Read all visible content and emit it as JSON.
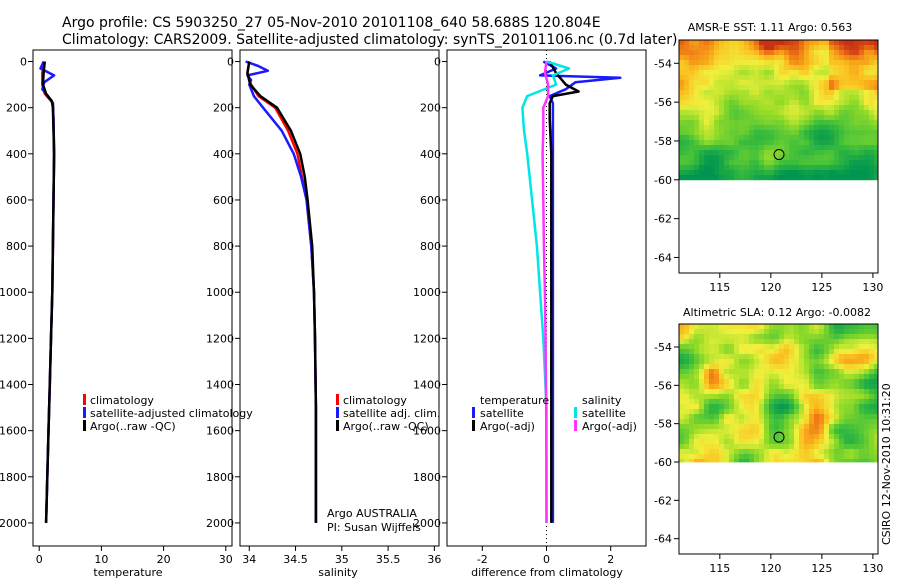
{
  "figure": {
    "title_line1": "Argo profile: CS 5903250_27 05-Nov-2010 20101108_640 58.688S 120.804E",
    "title_line2": "Climatology: CARS2009. Satellite-adjusted climatology: synTS_20101106.nc (0.7d later)",
    "credit": "CSIRO 12-Nov-2010 10:31:20"
  },
  "colors": {
    "climatology": "#ff0000",
    "satellite": "#1a1aff",
    "argo": "#000000",
    "sal_satellite": "#00e5e5",
    "sal_argo": "#ff33ff"
  },
  "panels": {
    "temperature": {
      "xlabel": "temperature",
      "legend": [
        "climatology",
        "satellite-adjusted climatology",
        "Argo(..raw -QC)"
      ]
    },
    "salinity": {
      "xlabel": "salinity",
      "legend": [
        "climatology",
        "satellite adj. clim.",
        "Argo(..raw -QC)"
      ],
      "note_line1": "Argo AUSTRALIA",
      "note_line2": "PI: Susan Wijffels"
    },
    "difference": {
      "xlabel": "difference from climatology",
      "legend_temp_title": "temperature",
      "legend_sal_title": "salinity",
      "legend_temp": [
        "satellite",
        "Argo(-adj)"
      ],
      "legend_sal": [
        "satellite",
        "Argo(-adj)"
      ]
    },
    "sst_map": {
      "title": "AMSR-E SST: 1.11  Argo: 0.563"
    },
    "sla_map": {
      "title": "Altimetric SLA: 0.12  Argo: -0.0082"
    }
  },
  "chart_data": [
    {
      "type": "line",
      "name": "temperature-profile",
      "xlabel": "temperature",
      "ylabel": "",
      "xlim": [
        -1,
        31
      ],
      "ylim": [
        2100,
        -50
      ],
      "xticks": [
        0,
        10,
        20,
        30
      ],
      "yticks": [
        0,
        200,
        400,
        600,
        800,
        1000,
        1200,
        1400,
        1600,
        1800,
        2000
      ],
      "series": [
        {
          "name": "climatology",
          "color": "climatology",
          "depth": [
            0,
            50,
            100,
            140,
            180,
            250,
            400,
            600,
            800,
            1000,
            1200,
            1400,
            1600,
            1800,
            2000
          ],
          "values": [
            0.8,
            0.5,
            0.5,
            0.9,
            2.2,
            2.3,
            2.4,
            2.3,
            2.2,
            2.1,
            1.9,
            1.7,
            1.5,
            1.3,
            1.1
          ]
        },
        {
          "name": "satellite-adjusted climatology",
          "color": "satellite",
          "depth": [
            0,
            30,
            60,
            90,
            120,
            150,
            180,
            250,
            400,
            600,
            800,
            1000,
            1200,
            1400,
            1600,
            1800,
            2000
          ],
          "values": [
            0.7,
            0.2,
            2.4,
            0.8,
            0.5,
            1.4,
            2.2,
            2.3,
            2.4,
            2.3,
            2.2,
            2.1,
            1.9,
            1.7,
            1.5,
            1.3,
            1.1
          ]
        },
        {
          "name": "Argo(..raw -QC)",
          "color": "argo",
          "depth": [
            0,
            50,
            100,
            140,
            170,
            200,
            300,
            400,
            600,
            800,
            1000,
            1200,
            1400,
            1600,
            1800,
            2000
          ],
          "values": [
            0.9,
            0.7,
            0.6,
            1.1,
            2.0,
            2.2,
            2.3,
            2.4,
            2.3,
            2.2,
            2.1,
            1.9,
            1.7,
            1.5,
            1.3,
            1.1
          ]
        }
      ]
    },
    {
      "type": "line",
      "name": "salinity-profile",
      "xlabel": "salinity",
      "ylabel": "",
      "xlim": [
        33.9,
        36.05
      ],
      "ylim": [
        2100,
        -50
      ],
      "xticks": [
        34,
        34.5,
        35,
        35.5,
        36
      ],
      "yticks": [
        0,
        200,
        400,
        600,
        800,
        1000,
        1200,
        1400,
        1600,
        1800,
        2000
      ],
      "series": [
        {
          "name": "climatology",
          "color": "climatology",
          "depth": [
            0,
            50,
            100,
            150,
            200,
            300,
            400,
            500,
            600,
            800,
            1000,
            1200,
            1500,
            2000
          ],
          "values": [
            34.0,
            33.98,
            34.02,
            34.1,
            34.28,
            34.42,
            34.52,
            34.57,
            34.62,
            34.67,
            34.7,
            34.71,
            34.72,
            34.72
          ]
        },
        {
          "name": "satellite adj. clim.",
          "color": "satellite",
          "depth": [
            0,
            20,
            40,
            60,
            80,
            100,
            150,
            200,
            300,
            400,
            500,
            600,
            800,
            1000,
            1200,
            1500,
            2000
          ],
          "values": [
            33.96,
            34.1,
            34.2,
            33.98,
            34.02,
            34.0,
            34.05,
            34.15,
            34.35,
            34.48,
            34.56,
            34.62,
            34.67,
            34.7,
            34.71,
            34.72,
            34.72
          ]
        },
        {
          "name": "Argo(..raw -QC)",
          "color": "argo",
          "depth": [
            0,
            50,
            100,
            150,
            200,
            300,
            400,
            500,
            600,
            800,
            1000,
            1200,
            1500,
            2000
          ],
          "values": [
            34.0,
            33.98,
            34.01,
            34.12,
            34.3,
            34.45,
            34.55,
            34.6,
            34.63,
            34.68,
            34.7,
            34.71,
            34.72,
            34.72
          ]
        }
      ]
    },
    {
      "type": "line",
      "name": "difference-profile",
      "xlabel": "difference from climatology",
      "ylabel": "",
      "xlim": [
        -3.1,
        3.1
      ],
      "ylim": [
        2100,
        -50
      ],
      "xticks": [
        -2,
        0,
        2
      ],
      "yticks": [
        0,
        200,
        400,
        600,
        800,
        1000,
        1200,
        1400,
        1600,
        1800,
        2000
      ],
      "series": [
        {
          "name": "temperature satellite",
          "color": "satellite",
          "depth": [
            0,
            30,
            60,
            70,
            90,
            120,
            150,
            180,
            250,
            400,
            800,
            1200,
            2000
          ],
          "values": [
            -0.1,
            0.3,
            -0.2,
            2.3,
            0.9,
            0.6,
            0.1,
            0.2,
            0.2,
            0.2,
            0.2,
            0.2,
            0.2
          ]
        },
        {
          "name": "temperature Argo(-adj)",
          "color": "argo",
          "depth": [
            0,
            50,
            100,
            130,
            150,
            180,
            250,
            400,
            800,
            1200,
            2000
          ],
          "values": [
            0.1,
            0.3,
            0.6,
            1.0,
            0.2,
            0.1,
            0.1,
            0.15,
            0.15,
            0.15,
            0.15
          ]
        },
        {
          "name": "salinity satellite",
          "color": "sal_satellite",
          "depth": [
            0,
            30,
            60,
            100,
            150,
            200,
            300,
            400,
            600,
            800,
            1000,
            1200,
            1500,
            2000
          ],
          "values": [
            0.0,
            0.7,
            0.2,
            0.3,
            -0.6,
            -0.75,
            -0.7,
            -0.6,
            -0.45,
            -0.3,
            -0.2,
            -0.1,
            0.0,
            0.0
          ]
        },
        {
          "name": "salinity Argo(-adj)",
          "color": "sal_argo",
          "depth": [
            0,
            50,
            100,
            150,
            200,
            300,
            400,
            600,
            800,
            1000,
            1200,
            1500,
            2000
          ],
          "values": [
            0.0,
            -0.05,
            0.05,
            0.05,
            -0.1,
            -0.1,
            -0.12,
            -0.1,
            -0.08,
            -0.05,
            -0.03,
            -0.01,
            0.0
          ]
        }
      ]
    },
    {
      "type": "heatmap",
      "name": "sst-map",
      "title": "AMSR-E SST: 1.11  Argo: 0.563",
      "xlim": [
        111,
        130.5
      ],
      "ylim": [
        -64.8,
        -52.8
      ],
      "xticks": [
        115,
        120,
        125,
        130
      ],
      "yticks": [
        -54,
        -56,
        -58,
        -60,
        -62,
        -64
      ],
      "data_lat_range": [
        -60,
        -52.8
      ],
      "marker": {
        "lon": 120.8,
        "lat": -58.7
      }
    },
    {
      "type": "heatmap",
      "name": "sla-map",
      "title": "Altimetric SLA: 0.12  Argo: -0.0082",
      "xlim": [
        111,
        130.5
      ],
      "ylim": [
        -64.8,
        -52.8
      ],
      "xticks": [
        115,
        120,
        125,
        130
      ],
      "yticks": [
        -54,
        -56,
        -58,
        -60,
        -62,
        -64
      ],
      "data_lat_range": [
        -60,
        -52.8
      ],
      "marker": {
        "lon": 120.8,
        "lat": -58.7
      }
    }
  ]
}
